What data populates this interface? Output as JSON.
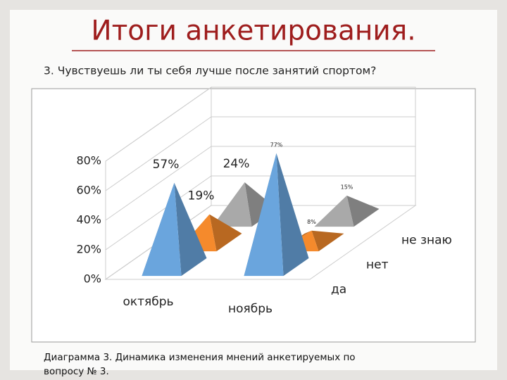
{
  "chart_data": {
    "type": "pyramid3d",
    "title": "Итоги анкетирования.",
    "subtitle": "3. Чувствуешь ли ты себя лучше после занятий спортом?",
    "caption": [
      "Диаграмма 3. Динамика изменения мнений анкетируемых по",
      "вопросу № 3."
    ],
    "categories": [
      "октябрь",
      "ноябрь"
    ],
    "series": [
      {
        "name": "да",
        "color": "#6aa5dd",
        "values": [
          57,
          77
        ],
        "value_labels": [
          "57%",
          "77%"
        ]
      },
      {
        "name": "нет",
        "color": "#f58a2c",
        "values": [
          19,
          8
        ],
        "value_labels": [
          "19%",
          "8%"
        ]
      },
      {
        "name": "не знаю",
        "color": "#a9a9a9",
        "values": [
          24,
          15
        ],
        "value_labels": [
          "24%",
          "15%"
        ]
      }
    ],
    "ylim": [
      0,
      80
    ],
    "yticks": [
      {
        "value": 0,
        "label": "0%"
      },
      {
        "value": 20,
        "label": "20%"
      },
      {
        "value": 40,
        "label": "40%"
      },
      {
        "value": 60,
        "label": "60%"
      },
      {
        "value": 80,
        "label": "80%"
      }
    ],
    "grid": true
  }
}
